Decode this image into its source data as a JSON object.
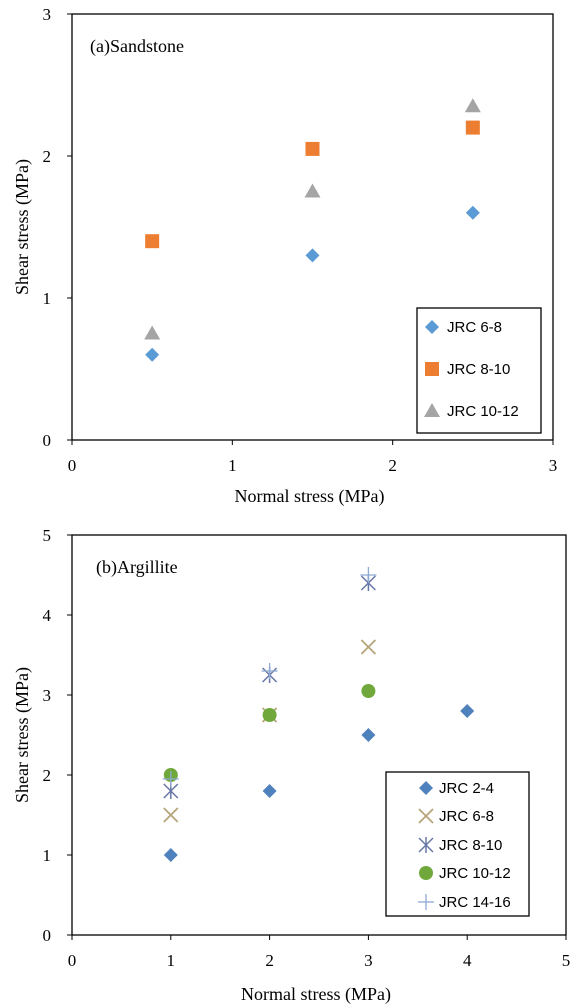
{
  "chart_data": [
    {
      "type": "scatter",
      "title": "(a)Sandstone",
      "xlabel": "Normal stress (MPa)",
      "ylabel": "Shear stress (MPa)",
      "xlim": [
        0,
        3
      ],
      "ylim": [
        0,
        3
      ],
      "xticks": [
        0,
        1,
        2,
        3
      ],
      "yticks": [
        0,
        1,
        2,
        3
      ],
      "legend_position": "bottom-right",
      "series": [
        {
          "name": "JRC 6-8",
          "marker": "diamond",
          "color": "#5B9BD5",
          "x": [
            0.5,
            1.5,
            2.5
          ],
          "y": [
            0.6,
            1.3,
            1.6
          ]
        },
        {
          "name": "JRC 8-10",
          "marker": "square",
          "color": "#ED7D31",
          "x": [
            0.5,
            1.5,
            2.5
          ],
          "y": [
            1.4,
            2.05,
            2.2
          ]
        },
        {
          "name": "JRC 10-12",
          "marker": "triangle",
          "color": "#A5A5A5",
          "x": [
            0.5,
            1.5,
            2.5
          ],
          "y": [
            0.75,
            1.75,
            2.35
          ]
        }
      ]
    },
    {
      "type": "scatter",
      "title": "(b)Argillite",
      "xlabel": "Normal stress (MPa)",
      "ylabel": "Shear stress (MPa)",
      "xlim": [
        0,
        5
      ],
      "ylim": [
        0,
        5
      ],
      "xticks": [
        0,
        1,
        2,
        3,
        4,
        5
      ],
      "yticks": [
        0,
        1,
        2,
        3,
        4,
        5
      ],
      "legend_position": "bottom-right",
      "series": [
        {
          "name": "JRC 2-4",
          "marker": "diamond",
          "color": "#4F81BD",
          "x": [
            1,
            2,
            3,
            4
          ],
          "y": [
            1.0,
            1.8,
            2.5,
            2.8
          ]
        },
        {
          "name": "JRC 6-8",
          "marker": "x",
          "color": "#B5A57A",
          "x": [
            1,
            2,
            3
          ],
          "y": [
            1.5,
            2.75,
            3.6
          ]
        },
        {
          "name": "JRC 8-10",
          "marker": "asterisk",
          "color": "#6777A8",
          "x": [
            1,
            2,
            3
          ],
          "y": [
            1.8,
            3.25,
            4.4
          ]
        },
        {
          "name": "JRC 10-12",
          "marker": "circle",
          "color": "#70A83C",
          "x": [
            1,
            2,
            3
          ],
          "y": [
            2.0,
            2.75,
            3.05
          ]
        },
        {
          "name": "JRC 14-16",
          "marker": "plus",
          "color": "#8DA9D4",
          "x": [
            1,
            2,
            3
          ],
          "y": [
            1.95,
            3.3,
            4.5
          ]
        }
      ]
    }
  ]
}
